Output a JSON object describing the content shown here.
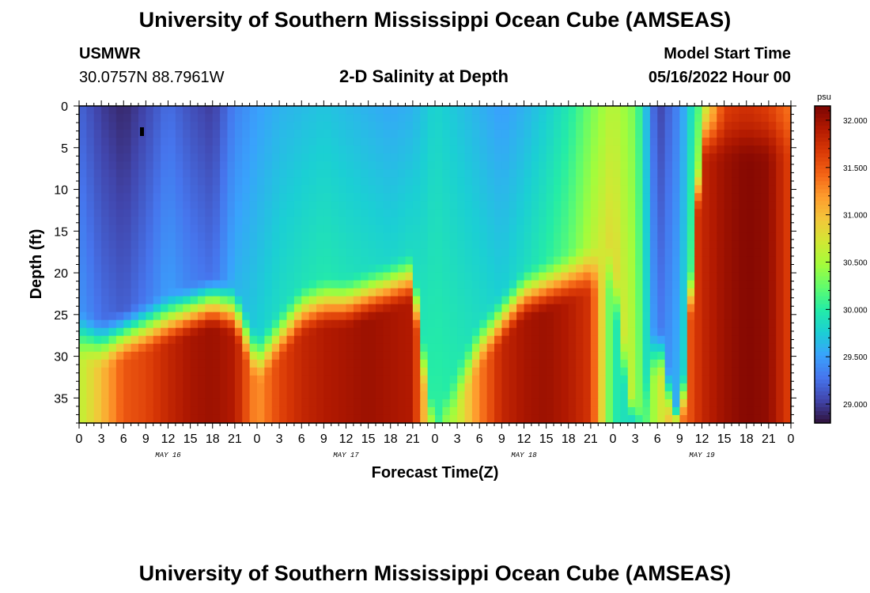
{
  "header": {
    "title": "University of Southern Mississippi Ocean Cube (AMSEAS)",
    "station": "USMWR",
    "coordinates": "30.0757N  88.7961W",
    "start_label": "Model Start Time",
    "start_value": "05/16/2022 Hour 00"
  },
  "footer": {
    "title": "University of Southern Mississippi Ocean Cube (AMSEAS)"
  },
  "chart_data": {
    "type": "heatmap",
    "title": "2-D Salinity at Depth",
    "xlabel": "Forecast Time(Z)",
    "ylabel": "Depth (ft)",
    "x_range_hours": [
      0,
      96
    ],
    "ylim": [
      0,
      38
    ],
    "x_tick_hours": [
      0,
      3,
      6,
      9,
      12,
      15,
      18,
      21,
      24,
      27,
      30,
      33,
      36,
      39,
      42,
      45,
      48,
      51,
      54,
      57,
      60,
      63,
      66,
      69,
      72,
      75,
      78,
      81,
      84,
      87,
      90,
      93,
      96
    ],
    "x_tick_labels": [
      "0",
      "3",
      "6",
      "9",
      "12",
      "15",
      "18",
      "21",
      "0",
      "3",
      "6",
      "9",
      "12",
      "15",
      "18",
      "21",
      "0",
      "3",
      "6",
      "9",
      "12",
      "15",
      "18",
      "21",
      "0",
      "3",
      "6",
      "9",
      "12",
      "15",
      "18",
      "21",
      "0"
    ],
    "date_labels": [
      {
        "label": "MAY 16",
        "hour": 12
      },
      {
        "label": "MAY 17",
        "hour": 36
      },
      {
        "label": "MAY 18",
        "hour": 60
      },
      {
        "label": "MAY 19",
        "hour": 84
      }
    ],
    "y_ticks": [
      0,
      5,
      10,
      15,
      20,
      25,
      30,
      35
    ],
    "colorbar": {
      "unit": "psu",
      "min": 28.8,
      "max": 32.15,
      "ticks": [
        "29.000",
        "29.500",
        "30.000",
        "30.500",
        "31.000",
        "31.500",
        "32.000"
      ],
      "colors": [
        "#30123b",
        "#4145ab",
        "#4675ed",
        "#39a2fc",
        "#1bcfd4",
        "#24eca6",
        "#61fc6c",
        "#a4fc3b",
        "#d1e834",
        "#f3c63a",
        "#fe9b2d",
        "#f36315",
        "#d93806",
        "#b11901",
        "#7a0402"
      ]
    },
    "surface_salinity_psu": [
      29.2,
      29.0,
      28.9,
      29.05,
      29.25,
      29.1,
      29.0,
      29.35,
      29.5,
      29.6,
      29.65,
      29.7,
      29.65,
      29.6,
      29.55,
      29.6,
      29.8,
      29.7,
      29.6,
      29.5,
      29.6,
      29.75,
      29.95,
      30.3,
      30.6,
      30.3,
      29.0,
      29.4,
      30.3,
      31.4,
      31.5,
      31.4,
      31.1
    ],
    "mixed_layer_depth_ft": [
      24,
      25,
      24,
      23,
      22,
      21,
      20,
      21,
      27,
      24,
      21,
      20,
      20,
      19,
      18,
      17,
      38,
      30,
      25,
      22,
      19,
      18,
      17,
      16,
      16,
      38,
      24,
      38,
      0,
      0,
      0,
      0,
      0
    ],
    "bottom_salinity_psu": [
      30.6,
      31.0,
      31.5,
      31.6,
      31.8,
      31.95,
      32.0,
      31.9,
      31.2,
      31.6,
      31.8,
      31.9,
      31.95,
      32.0,
      31.95,
      31.9,
      30.2,
      30.6,
      31.3,
      31.8,
      31.95,
      32.0,
      31.9,
      31.7,
      30.0,
      29.8,
      30.6,
      31.3,
      31.8,
      32.0,
      32.1,
      32.05,
      31.6
    ]
  }
}
